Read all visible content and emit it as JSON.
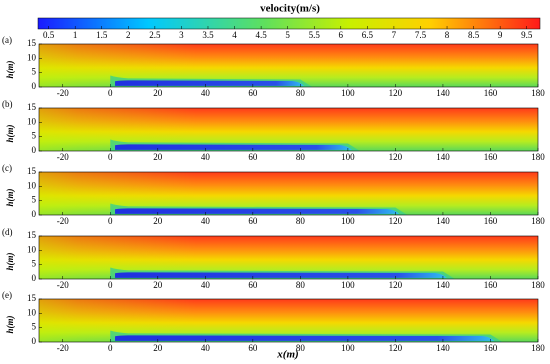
{
  "chart_data": {
    "type": "contour",
    "title": "velocity(m/s)",
    "xlabel": "x(m)",
    "ylabel": "h(m)",
    "colorbar": {
      "lim": [
        0.3,
        9.75
      ],
      "ticks": [
        0.5,
        1,
        1.5,
        2,
        2.5,
        3,
        3.5,
        4,
        4.5,
        5,
        5.5,
        6,
        6.5,
        7,
        7.5,
        8,
        8.5,
        9,
        9.5
      ]
    },
    "xlim": [
      -30,
      180
    ],
    "xticks": [
      -20,
      0,
      20,
      40,
      60,
      80,
      100,
      120,
      140,
      160,
      180
    ],
    "ylim": [
      0,
      15
    ],
    "yticks": [
      0,
      5,
      10,
      15
    ],
    "panels": [
      {
        "label": "(a)",
        "wake_end": 80
      },
      {
        "label": "(b)",
        "wake_end": 100
      },
      {
        "label": "(c)",
        "wake_end": 120
      },
      {
        "label": "(d)",
        "wake_end": 140
      },
      {
        "label": "(e)",
        "wake_end": 160
      }
    ]
  }
}
